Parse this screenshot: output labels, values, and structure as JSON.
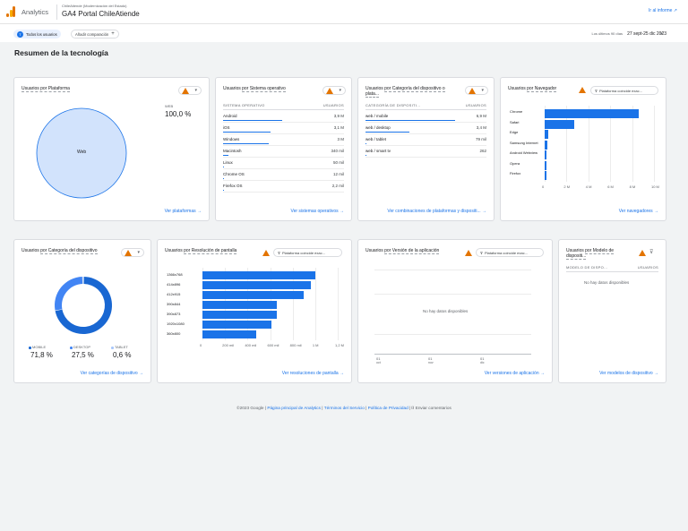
{
  "header": {
    "app_name": "Analytics",
    "account": "ChileAtiende (Modernización del Estado)",
    "property": "GA4 Portal ChileAtiende",
    "go_report": "Ir al informe"
  },
  "subbar": {
    "segment_badge": "T",
    "segment": "Todos los usuarios",
    "add_comparison": "Añadir comparación",
    "date_label": "Los últimos 90 días",
    "date_range": "27 sept-25 dic 2023"
  },
  "page_title": "Resumen de la tecnología",
  "filter_text": "Plataforma coincide exac...",
  "cards": {
    "platform": {
      "title": "Usuarios por Plataforma",
      "legend_label": "WEB",
      "legend_value": "100,0 %",
      "slice_label": "Web",
      "link": "Ver plataformas"
    },
    "os": {
      "title_prefix": "Usuarios ",
      "title_link": "por Sistema operativo",
      "col1": "SISTEMA OPERATIVO",
      "col2": "USUARIOS",
      "rows": [
        {
          "name": "Android",
          "value": "3,9 M"
        },
        {
          "name": "iOS",
          "value": "3,1 M"
        },
        {
          "name": "Windows",
          "value": "3 M"
        },
        {
          "name": "Macintosh",
          "value": "340 mil"
        },
        {
          "name": "Linux",
          "value": "50 mil"
        },
        {
          "name": "Chrome OS",
          "value": "12 mil"
        },
        {
          "name": "Firefox OS",
          "value": "2,2 mil"
        }
      ],
      "link": "Ver sistemas operativos"
    },
    "devcat_table": {
      "title_prefix": "Usuarios ",
      "title_link": "por Categoría del dispositivo o plata...",
      "col1": "CATEGORÍA DE DISPOSITI...",
      "col2": "USUARIOS",
      "rows": [
        {
          "name": "web / mobile",
          "value": "6,9 M"
        },
        {
          "name": "web / desktop",
          "value": "3,4 M"
        },
        {
          "name": "web / tablet",
          "value": "79 mil"
        },
        {
          "name": "web / smart tv",
          "value": "262"
        }
      ],
      "link": "Ver combinaciones de plataformas y dispositi..."
    },
    "browser": {
      "title_prefix": "Usuarios ",
      "title_link": "por Navegador",
      "link": "Ver navegadores"
    },
    "devcat": {
      "title_prefix": "Usuarios ",
      "title_link": "por Categoría del dispositivo",
      "legend": [
        {
          "label": "MOBILE",
          "value": "71,8 %",
          "color": "#1967d2"
        },
        {
          "label": "DESKTOP",
          "value": "27,5 %",
          "color": "#4285f4"
        },
        {
          "label": "TABLET",
          "value": "0,6 %",
          "color": "#a8c7fa"
        }
      ],
      "link": "Ver categorías de dispositivo"
    },
    "resolution": {
      "title_prefix": "Usuarios ",
      "title_link": "por Resolución de pantalla",
      "link": "Ver resoluciones de pantalla"
    },
    "appversion": {
      "title_prefix": "Usuarios ",
      "title_link": "por Versión de la aplicación",
      "no_data": "No hay datos disponibles",
      "x_labels": [
        {
          "day": "01",
          "month": "oct"
        },
        {
          "day": "01",
          "month": "nov"
        },
        {
          "day": "01",
          "month": "dic"
        }
      ],
      "link": "Ver versiones de aplicación"
    },
    "model": {
      "title_prefix": "Usuarios ",
      "title_link": "por Modelo de dispositi...",
      "col1": "MODELO DE DISPO...",
      "col2": "USUARIOS",
      "no_data": "No hay datos disponibles",
      "link": "Ver modelos de dispositivo"
    }
  },
  "chart_data": [
    {
      "type": "pie",
      "categories": [
        "Web"
      ],
      "values": [
        100.0
      ]
    },
    {
      "type": "bar",
      "orientation": "horizontal",
      "categories": [
        "Chrome",
        "Safari",
        "Edge",
        "Samsung Internet",
        "Android Webview",
        "Opera",
        "Firefox"
      ],
      "values": [
        8.6,
        2.7,
        0.35,
        0.25,
        0.12,
        0.06,
        0.05
      ],
      "unit": "M",
      "ticks": [
        "0",
        "2 M",
        "4 M",
        "6 M",
        "8 M",
        "10 M"
      ],
      "xlim": [
        0,
        10
      ]
    },
    {
      "type": "pie",
      "categories": [
        "MOBILE",
        "DESKTOP",
        "TABLET"
      ],
      "values": [
        71.8,
        27.5,
        0.6
      ]
    },
    {
      "type": "bar",
      "orientation": "horizontal",
      "categories": [
        "1366x768",
        "414x896",
        "412x915",
        "390x844",
        "390x873",
        "1920x1080",
        "360x800"
      ],
      "values": [
        1.0,
        0.96,
        0.9,
        0.66,
        0.66,
        0.61,
        0.48
      ],
      "unit": "M",
      "ticks": [
        "0",
        "200 mil",
        "400 mil",
        "600 mil",
        "800 mil",
        "1 M",
        "1,2 M"
      ],
      "xlim": [
        0,
        1.2
      ]
    }
  ],
  "footer": {
    "copyright": "©2023 Google",
    "links": [
      "Página principal de Analytics",
      "Términos del Servicio",
      "Política de Privacidad"
    ],
    "feedback": "Enviar comentarios"
  }
}
